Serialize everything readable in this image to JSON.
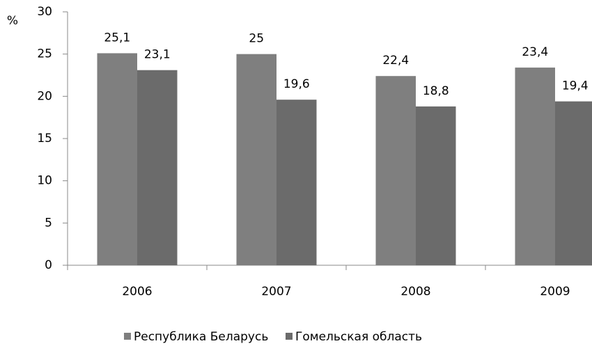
{
  "chart_data": {
    "type": "bar",
    "y_label": "%",
    "categories": [
      "2006",
      "2007",
      "2008",
      "2009"
    ],
    "series": [
      {
        "name": "Республика Беларусь",
        "color": "#7f7f7f",
        "values": [
          25.1,
          25,
          22.4,
          23.4
        ],
        "value_labels": [
          "25,1",
          "25",
          "22,4",
          "23,4"
        ]
      },
      {
        "name": "Гомельская область",
        "color": "#6b6b6b",
        "values": [
          23.1,
          19.6,
          18.8,
          19.4
        ],
        "value_labels": [
          "23,1",
          "19,6",
          "18,8",
          "19,4"
        ]
      }
    ],
    "ylim": [
      0,
      30
    ],
    "yticks": [
      0,
      5,
      10,
      15,
      20,
      25,
      30
    ],
    "grid": false,
    "legend": "bottom"
  }
}
